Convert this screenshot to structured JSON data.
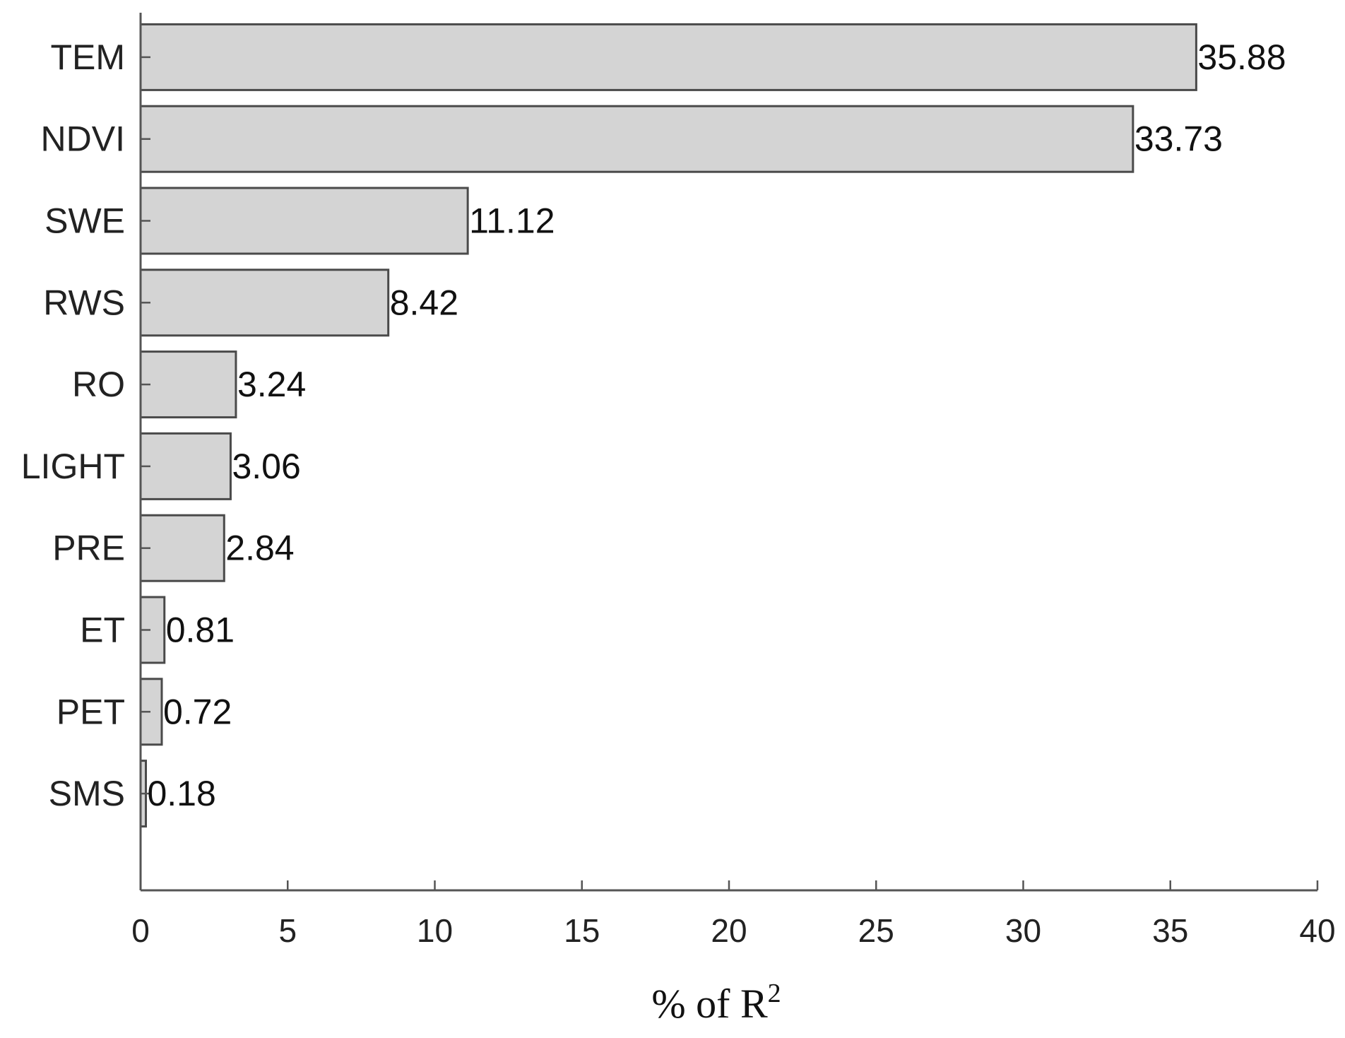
{
  "chart_data": {
    "type": "bar",
    "orientation": "horizontal",
    "categories": [
      "TEM",
      "NDVI",
      "SWE",
      "RWS",
      "RO",
      "LIGHT",
      "PRE",
      "ET",
      "PET",
      "SMS"
    ],
    "values": [
      35.88,
      33.73,
      11.12,
      8.42,
      3.24,
      3.06,
      2.84,
      0.81,
      0.72,
      0.18
    ],
    "value_labels": [
      "35.88",
      "33.73",
      "11.12",
      "8.42",
      "3.24",
      "3.06",
      "2.84",
      "0.81",
      "0.72",
      "0.18"
    ],
    "xlabel": "% of R",
    "xlabel_superscript": "2",
    "xlim": [
      0,
      40
    ],
    "xticks": [
      0,
      5,
      10,
      15,
      20,
      25,
      30,
      35,
      40
    ],
    "grid": false,
    "colors": {
      "bar_fill": "#d4d4d4",
      "bar_edge": "#4a4a4a",
      "axis": "#555555"
    }
  }
}
